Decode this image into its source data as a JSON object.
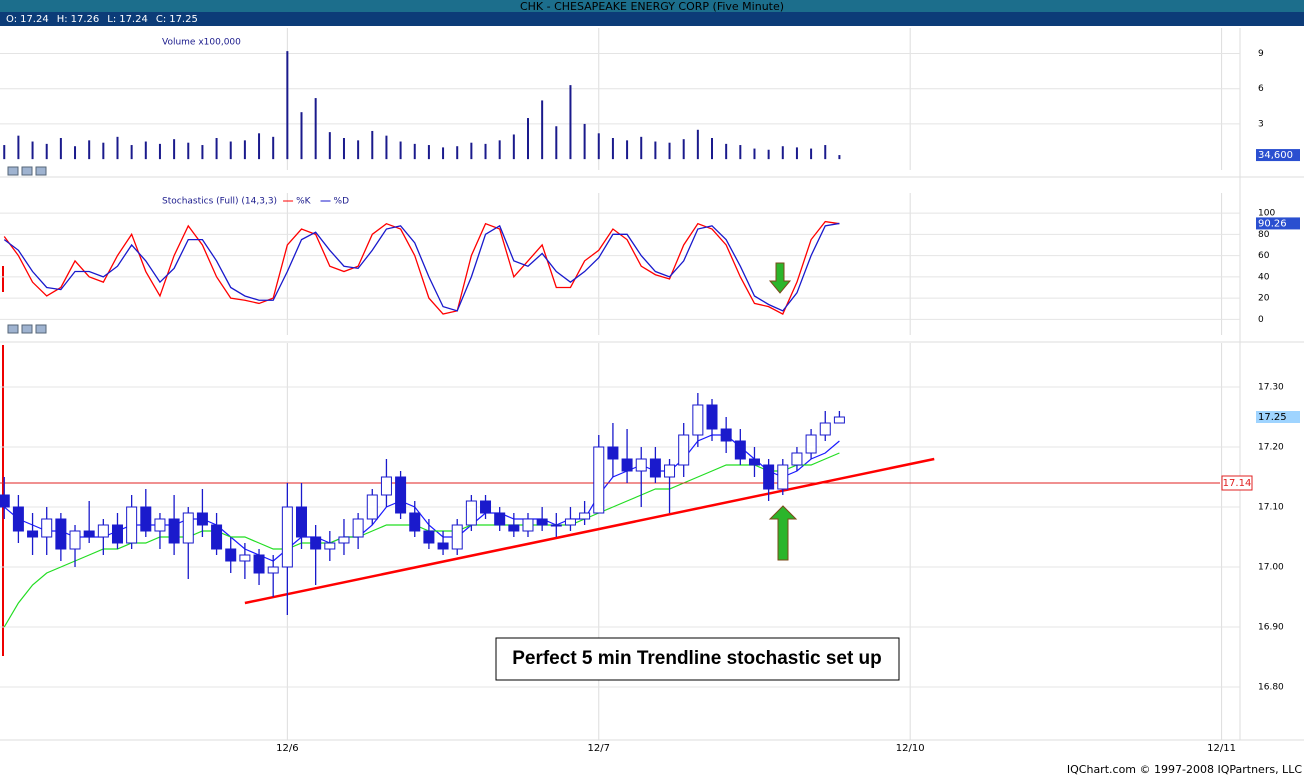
{
  "header": {
    "title": "CHK - CHESAPEAKE ENERGY CORP (Five Minute)",
    "quote": [
      {
        "label": "O:",
        "value": 17.24
      },
      {
        "label": "H:",
        "value": 17.26
      },
      {
        "label": "L:",
        "value": 17.24
      },
      {
        "label": "C:",
        "value": 17.25
      }
    ]
  },
  "footer": "IQChart.com © 1997-2008 IQPartners, LLC",
  "chart_data": [
    {
      "type": "bar",
      "title": "Volume x100,000",
      "color": "#1a1a8c",
      "values": [
        1.2,
        2.0,
        1.5,
        1.3,
        1.8,
        1.1,
        1.6,
        1.4,
        1.9,
        1.2,
        1.5,
        1.3,
        1.7,
        1.4,
        1.2,
        1.8,
        1.5,
        1.6,
        2.2,
        1.9,
        9.2,
        4.0,
        5.2,
        2.3,
        1.8,
        1.6,
        2.4,
        2.0,
        1.5,
        1.3,
        1.2,
        1.0,
        1.1,
        1.4,
        1.3,
        1.6,
        2.1,
        3.5,
        5.0,
        2.8,
        6.3,
        3.0,
        2.2,
        1.8,
        1.6,
        1.9,
        1.5,
        1.4,
        1.7,
        2.5,
        1.8,
        1.3,
        1.2,
        0.9,
        0.8,
        1.1,
        1.0,
        0.9,
        1.2,
        0.346
      ],
      "last_label": "34,600",
      "ylim": [
        -0.5,
        11
      ],
      "yticks": [
        3,
        6,
        9
      ],
      "grid": true
    },
    {
      "type": "line",
      "title": "Stochastics (Full) (14,3,3)",
      "series": [
        {
          "name": "%K",
          "color": "#ff0000",
          "values": [
            78,
            60,
            35,
            22,
            30,
            55,
            40,
            35,
            60,
            80,
            45,
            22,
            60,
            88,
            70,
            40,
            20,
            18,
            15,
            20,
            70,
            85,
            80,
            50,
            45,
            50,
            80,
            90,
            85,
            60,
            20,
            5,
            8,
            60,
            90,
            85,
            40,
            55,
            70,
            30,
            30,
            55,
            65,
            85,
            75,
            50,
            42,
            38,
            70,
            90,
            85,
            70,
            40,
            15,
            12,
            5,
            35,
            75,
            92,
            90
          ]
        },
        {
          "name": "%D",
          "color": "#1a1acc",
          "values": [
            75,
            65,
            45,
            30,
            28,
            45,
            45,
            40,
            50,
            70,
            55,
            35,
            48,
            75,
            75,
            55,
            30,
            22,
            18,
            18,
            45,
            75,
            82,
            65,
            50,
            48,
            65,
            85,
            88,
            72,
            40,
            12,
            8,
            40,
            80,
            88,
            55,
            50,
            62,
            45,
            35,
            45,
            58,
            80,
            80,
            60,
            45,
            40,
            55,
            85,
            88,
            75,
            50,
            22,
            14,
            8,
            25,
            60,
            88,
            90.26
          ]
        }
      ],
      "last_value": 90.26,
      "ylim": [
        -10,
        117
      ],
      "yticks": [
        0,
        20,
        40,
        60,
        80,
        100
      ],
      "grid": true
    },
    {
      "type": "candlestick",
      "color": "#1a1acc",
      "x": [
        0,
        1,
        2,
        3,
        4,
        5,
        6,
        7,
        8,
        9,
        10,
        11,
        12,
        13,
        14,
        15,
        16,
        17,
        18,
        19,
        20,
        21,
        22,
        23,
        24,
        25,
        26,
        27,
        28,
        29,
        30,
        31,
        32,
        33,
        34,
        35,
        36,
        37,
        38,
        39,
        40,
        41,
        42,
        43,
        44,
        45,
        46,
        47,
        48,
        49,
        50,
        51,
        52,
        53,
        54,
        55,
        56,
        57,
        58,
        59
      ],
      "open": [
        17.12,
        17.1,
        17.06,
        17.05,
        17.08,
        17.03,
        17.06,
        17.05,
        17.07,
        17.04,
        17.1,
        17.06,
        17.08,
        17.04,
        17.09,
        17.07,
        17.03,
        17.01,
        17.02,
        16.99,
        17.0,
        17.1,
        17.05,
        17.03,
        17.04,
        17.05,
        17.08,
        17.12,
        17.15,
        17.09,
        17.06,
        17.04,
        17.03,
        17.07,
        17.11,
        17.09,
        17.07,
        17.06,
        17.08,
        17.07,
        17.07,
        17.08,
        17.09,
        17.2,
        17.18,
        17.16,
        17.18,
        17.15,
        17.17,
        17.22,
        17.27,
        17.23,
        17.21,
        17.18,
        17.17,
        17.13,
        17.17,
        17.19,
        17.22,
        17.24
      ],
      "high": [
        17.15,
        17.12,
        17.09,
        17.1,
        17.09,
        17.07,
        17.11,
        17.08,
        17.09,
        17.12,
        17.13,
        17.09,
        17.12,
        17.1,
        17.13,
        17.09,
        17.05,
        17.04,
        17.03,
        17.02,
        17.14,
        17.14,
        17.07,
        17.06,
        17.08,
        17.09,
        17.13,
        17.18,
        17.16,
        17.11,
        17.08,
        17.06,
        17.08,
        17.12,
        17.12,
        17.1,
        17.09,
        17.09,
        17.1,
        17.09,
        17.1,
        17.11,
        17.22,
        17.24,
        17.23,
        17.2,
        17.2,
        17.18,
        17.24,
        17.29,
        17.28,
        17.25,
        17.23,
        17.2,
        17.18,
        17.18,
        17.2,
        17.23,
        17.26,
        17.26
      ],
      "low": [
        17.08,
        17.04,
        17.02,
        17.02,
        17.01,
        17.0,
        17.04,
        17.02,
        17.03,
        17.03,
        17.05,
        17.03,
        17.02,
        16.98,
        17.05,
        17.02,
        16.99,
        16.98,
        16.97,
        16.95,
        16.92,
        17.03,
        16.97,
        17.01,
        17.02,
        17.03,
        17.07,
        17.1,
        17.08,
        17.05,
        17.03,
        17.02,
        17.02,
        17.06,
        17.08,
        17.06,
        17.05,
        17.05,
        17.06,
        17.05,
        17.06,
        17.07,
        17.09,
        17.15,
        17.14,
        17.1,
        17.14,
        17.09,
        17.15,
        17.2,
        17.21,
        17.19,
        17.17,
        17.15,
        17.11,
        17.12,
        17.16,
        17.18,
        17.21,
        17.24
      ],
      "close": [
        17.1,
        17.06,
        17.05,
        17.08,
        17.03,
        17.06,
        17.05,
        17.07,
        17.04,
        17.1,
        17.06,
        17.08,
        17.04,
        17.09,
        17.07,
        17.03,
        17.01,
        17.02,
        16.99,
        17.0,
        17.1,
        17.05,
        17.03,
        17.04,
        17.05,
        17.08,
        17.12,
        17.15,
        17.09,
        17.06,
        17.04,
        17.03,
        17.07,
        17.11,
        17.09,
        17.07,
        17.06,
        17.08,
        17.07,
        17.07,
        17.08,
        17.09,
        17.2,
        17.18,
        17.16,
        17.18,
        17.15,
        17.17,
        17.22,
        17.27,
        17.23,
        17.21,
        17.18,
        17.17,
        17.13,
        17.17,
        17.19,
        17.22,
        17.24,
        17.25
      ],
      "series": [
        {
          "color": "#1a1aff",
          "values": [
            17.1,
            17.08,
            17.07,
            17.06,
            17.06,
            17.05,
            17.05,
            17.05,
            17.06,
            17.07,
            17.07,
            17.07,
            17.07,
            17.08,
            17.08,
            17.07,
            17.05,
            17.03,
            17.02,
            17.01,
            17.03,
            17.05,
            17.05,
            17.04,
            17.05,
            17.05,
            17.07,
            17.1,
            17.11,
            17.1,
            17.07,
            17.05,
            17.05,
            17.07,
            17.09,
            17.09,
            17.08,
            17.08,
            17.08,
            17.07,
            17.08,
            17.08,
            17.12,
            17.15,
            17.16,
            17.17,
            17.16,
            17.16,
            17.18,
            17.21,
            17.22,
            17.22,
            17.2,
            17.18,
            17.16,
            17.15,
            17.16,
            17.18,
            17.19,
            17.21
          ]
        },
        {
          "color": "#22dd22",
          "values": [
            16.9,
            16.94,
            16.97,
            16.99,
            17.0,
            17.01,
            17.02,
            17.03,
            17.03,
            17.04,
            17.04,
            17.05,
            17.05,
            17.05,
            17.06,
            17.06,
            17.05,
            17.05,
            17.04,
            17.03,
            17.03,
            17.04,
            17.04,
            17.04,
            17.05,
            17.05,
            17.06,
            17.07,
            17.07,
            17.07,
            17.06,
            17.06,
            17.06,
            17.07,
            17.07,
            17.07,
            17.07,
            17.07,
            17.07,
            17.07,
            17.07,
            17.08,
            17.09,
            17.1,
            17.11,
            17.12,
            17.13,
            17.13,
            17.14,
            17.15,
            17.16,
            17.17,
            17.17,
            17.17,
            17.16,
            17.16,
            17.17,
            17.17,
            17.18,
            17.19
          ]
        }
      ],
      "hline": {
        "value": 17.14,
        "color": "#e02020"
      },
      "trendline": {
        "x": [
          17,
          65.7
        ],
        "y": [
          16.94,
          17.18
        ],
        "color": "#ff0000"
      },
      "last_value": 17.25,
      "annotation": "Perfect 5 min Trendline stochastic set up",
      "xlim": [
        -0.3,
        87.3
      ],
      "xticks": [
        {
          "value": 20,
          "label": "12/6"
        },
        {
          "value": 42,
          "label": "12/7"
        },
        {
          "value": 64,
          "label": "12/10"
        },
        {
          "value": 86,
          "label": "12/11"
        }
      ],
      "ylim": [
        16.72,
        17.37
      ],
      "yticks": [
        {
          "value": 16.8,
          "label": "16.80"
        },
        {
          "value": 16.9,
          "label": "16.90"
        },
        {
          "value": 17,
          "label": "17.00"
        },
        {
          "value": 17.1,
          "label": "17.10"
        },
        {
          "value": 17.2,
          "label": "17.20"
        },
        {
          "value": 17.3,
          "label": "17.30"
        }
      ],
      "grid": true
    }
  ]
}
